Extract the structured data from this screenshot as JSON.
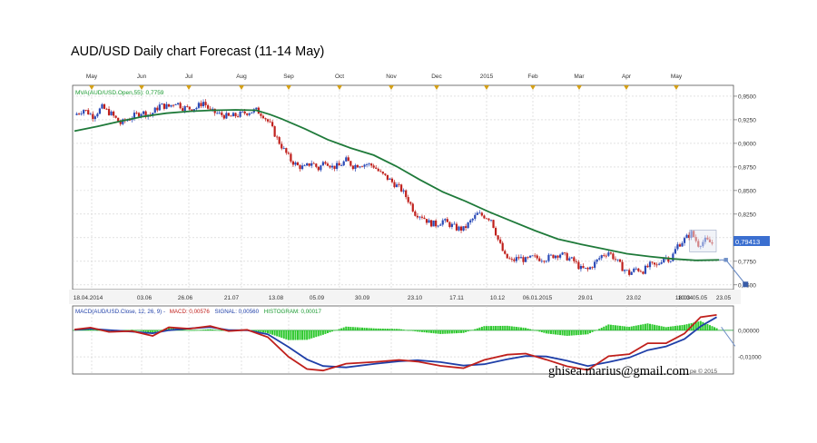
{
  "title": "AUD/USD Daily chart Forecast (11-14 May)",
  "watermark": "ghisea.marius@gmail.com",
  "copyright_fragment": "pe © 2015",
  "colors": {
    "up_candle": "#2b4bb8",
    "down_candle": "#c0201c",
    "ma": "#1f7a3a",
    "macd": "#c0201c",
    "signal": "#1f3fa8",
    "hist": "#2ec82e",
    "legend_green": "#1a9a30",
    "projection": "#6f8fc7"
  },
  "chart_data": [
    {
      "type": "candlestick",
      "legend": "MVA(AUD/USD.Open,55): 0,7759",
      "month_labels": [
        "May",
        "Jun",
        "Jul",
        "Aug",
        "Sep",
        "Oct",
        "Nov",
        "Dec",
        "2015",
        "Feb",
        "Mar",
        "Apr",
        "May"
      ],
      "date_labels": [
        "18.04.2014",
        "03.06",
        "26.06",
        "21.07",
        "13.08",
        "05.09",
        "30.09",
        "23.10",
        "17.11",
        "10.12",
        "06.01.2015",
        "29.01",
        "23.02",
        "18.03",
        "10.04",
        "05.05",
        "23.05"
      ],
      "y_ticks": [
        "0,9500",
        "0,9250",
        "0,9000",
        "0,8750",
        "0,8500",
        "0,8250",
        "0,8000",
        "0,7750",
        "0,7500"
      ],
      "last_price_label": "0,79413",
      "ylim": [
        0.745,
        0.9615
      ],
      "price_path": [
        [
          0,
          0.93
        ],
        [
          8,
          0.936
        ],
        [
          16,
          0.929
        ],
        [
          24,
          0.938
        ],
        [
          32,
          0.931
        ],
        [
          40,
          0.921
        ],
        [
          50,
          0.928
        ],
        [
          58,
          0.933
        ],
        [
          66,
          0.93
        ],
        [
          74,
          0.94
        ],
        [
          82,
          0.939
        ],
        [
          88,
          0.944
        ],
        [
          94,
          0.938
        ],
        [
          100,
          0.937
        ],
        [
          106,
          0.938
        ],
        [
          112,
          0.944
        ],
        [
          118,
          0.934
        ],
        [
          126,
          0.931
        ],
        [
          134,
          0.928
        ],
        [
          142,
          0.93
        ],
        [
          150,
          0.933
        ],
        [
          158,
          0.935
        ],
        [
          164,
          0.93
        ],
        [
          170,
          0.92
        ],
        [
          176,
          0.905
        ],
        [
          182,
          0.893
        ],
        [
          188,
          0.882
        ],
        [
          194,
          0.876
        ],
        [
          200,
          0.874
        ],
        [
          206,
          0.88
        ],
        [
          212,
          0.873
        ],
        [
          218,
          0.882
        ],
        [
          224,
          0.875
        ],
        [
          230,
          0.876
        ],
        [
          236,
          0.882
        ],
        [
          242,
          0.876
        ],
        [
          248,
          0.878
        ],
        [
          254,
          0.878
        ],
        [
          260,
          0.876
        ],
        [
          266,
          0.868
        ],
        [
          272,
          0.863
        ],
        [
          278,
          0.857
        ],
        [
          284,
          0.851
        ],
        [
          290,
          0.84
        ],
        [
          296,
          0.826
        ],
        [
          302,
          0.823
        ],
        [
          308,
          0.816
        ],
        [
          314,
          0.814
        ],
        [
          320,
          0.818
        ],
        [
          326,
          0.814
        ],
        [
          332,
          0.81
        ],
        [
          338,
          0.809
        ],
        [
          344,
          0.817
        ],
        [
          350,
          0.825
        ],
        [
          356,
          0.823
        ],
        [
          362,
          0.82
        ],
        [
          368,
          0.798
        ],
        [
          374,
          0.78
        ],
        [
          380,
          0.775
        ],
        [
          386,
          0.779
        ],
        [
          392,
          0.776
        ],
        [
          398,
          0.779
        ],
        [
          404,
          0.778
        ],
        [
          410,
          0.778
        ],
        [
          416,
          0.781
        ],
        [
          422,
          0.783
        ],
        [
          428,
          0.779
        ],
        [
          434,
          0.775
        ],
        [
          440,
          0.767
        ],
        [
          446,
          0.766
        ],
        [
          452,
          0.773
        ],
        [
          458,
          0.781
        ],
        [
          464,
          0.785
        ],
        [
          470,
          0.777
        ],
        [
          476,
          0.768
        ],
        [
          482,
          0.762
        ],
        [
          488,
          0.767
        ],
        [
          494,
          0.765
        ],
        [
          500,
          0.771
        ],
        [
          506,
          0.77
        ],
        [
          512,
          0.78
        ],
        [
          518,
          0.777
        ],
        [
          524,
          0.792
        ],
        [
          530,
          0.798
        ],
        [
          536,
          0.805
        ],
        [
          542,
          0.793
        ],
        [
          548,
          0.797
        ],
        [
          554,
          0.794
        ]
      ],
      "ma_path": [
        [
          0,
          0.913
        ],
        [
          20,
          0.918
        ],
        [
          40,
          0.9235
        ],
        [
          60,
          0.9285
        ],
        [
          80,
          0.932
        ],
        [
          100,
          0.934
        ],
        [
          120,
          0.935
        ],
        [
          140,
          0.9355
        ],
        [
          158,
          0.935
        ],
        [
          170,
          0.9305
        ],
        [
          180,
          0.926
        ],
        [
          200,
          0.9155
        ],
        [
          220,
          0.904
        ],
        [
          240,
          0.895
        ],
        [
          260,
          0.8875
        ],
        [
          280,
          0.8755
        ],
        [
          300,
          0.8615
        ],
        [
          320,
          0.8485
        ],
        [
          340,
          0.8385
        ],
        [
          360,
          0.8275
        ],
        [
          380,
          0.8175
        ],
        [
          400,
          0.8075
        ],
        [
          420,
          0.7985
        ],
        [
          440,
          0.793
        ],
        [
          460,
          0.788
        ],
        [
          480,
          0.783
        ],
        [
          500,
          0.78
        ],
        [
          520,
          0.7775
        ],
        [
          540,
          0.776
        ],
        [
          560,
          0.7765
        ]
      ],
      "projection": [
        [
          560,
          0.7765
        ],
        [
          566,
          0.7765
        ],
        [
          583,
          0.7505
        ]
      ]
    },
    {
      "type": "line+histogram",
      "legend_prefix": "MACD(AUD/USD.Close, 12, 26, 9) -",
      "legend_macd": "MACD: 0,00576",
      "legend_signal": "SIGNAL: 0,00560",
      "legend_hist": "HISTOGRAM: 0,00017",
      "y_ticks": [
        "0,00000",
        "-0,01000"
      ],
      "ylim": [
        -0.0165,
        0.0092
      ],
      "macd": [
        [
          0,
          0.0003
        ],
        [
          14,
          0.001
        ],
        [
          30,
          -0.0006
        ],
        [
          50,
          -0.0003
        ],
        [
          68,
          -0.0021
        ],
        [
          82,
          0.0011
        ],
        [
          100,
          0.0006
        ],
        [
          118,
          0.0016
        ],
        [
          134,
          -0.0003
        ],
        [
          150,
          0.0002
        ],
        [
          168,
          -0.0026
        ],
        [
          186,
          -0.01
        ],
        [
          202,
          -0.0146
        ],
        [
          216,
          -0.0152
        ],
        [
          236,
          -0.0126
        ],
        [
          262,
          -0.0119
        ],
        [
          282,
          -0.0112
        ],
        [
          298,
          -0.0118
        ],
        [
          318,
          -0.0134
        ],
        [
          338,
          -0.0143
        ],
        [
          356,
          -0.0112
        ],
        [
          376,
          -0.0092
        ],
        [
          392,
          -0.0088
        ],
        [
          410,
          -0.0111
        ],
        [
          428,
          -0.0136
        ],
        [
          446,
          -0.015
        ],
        [
          464,
          -0.0098
        ],
        [
          482,
          -0.009
        ],
        [
          498,
          -0.0049
        ],
        [
          514,
          -0.0049
        ],
        [
          530,
          -0.0012
        ],
        [
          544,
          0.005
        ],
        [
          558,
          0.0058
        ]
      ],
      "signal": [
        [
          0,
          0.0002
        ],
        [
          14,
          0.0006
        ],
        [
          30,
          0.0001
        ],
        [
          50,
          -0.0005
        ],
        [
          68,
          -0.0011
        ],
        [
          82,
          0.0
        ],
        [
          100,
          0.0007
        ],
        [
          118,
          0.0012
        ],
        [
          134,
          0.0001
        ],
        [
          150,
          0.0
        ],
        [
          168,
          -0.0015
        ],
        [
          186,
          -0.0063
        ],
        [
          202,
          -0.011
        ],
        [
          216,
          -0.0135
        ],
        [
          236,
          -0.014
        ],
        [
          262,
          -0.0126
        ],
        [
          282,
          -0.0117
        ],
        [
          298,
          -0.0113
        ],
        [
          318,
          -0.012
        ],
        [
          338,
          -0.0133
        ],
        [
          356,
          -0.0128
        ],
        [
          376,
          -0.0109
        ],
        [
          392,
          -0.0097
        ],
        [
          410,
          -0.0099
        ],
        [
          428,
          -0.0115
        ],
        [
          446,
          -0.0135
        ],
        [
          464,
          -0.012
        ],
        [
          482,
          -0.0103
        ],
        [
          498,
          -0.0075
        ],
        [
          514,
          -0.0061
        ],
        [
          530,
          -0.0033
        ],
        [
          544,
          0.0015
        ],
        [
          558,
          0.005
        ]
      ],
      "signal_projection": [
        [
          562,
          0.0012
        ],
        [
          574,
          -0.006
        ]
      ]
    }
  ]
}
